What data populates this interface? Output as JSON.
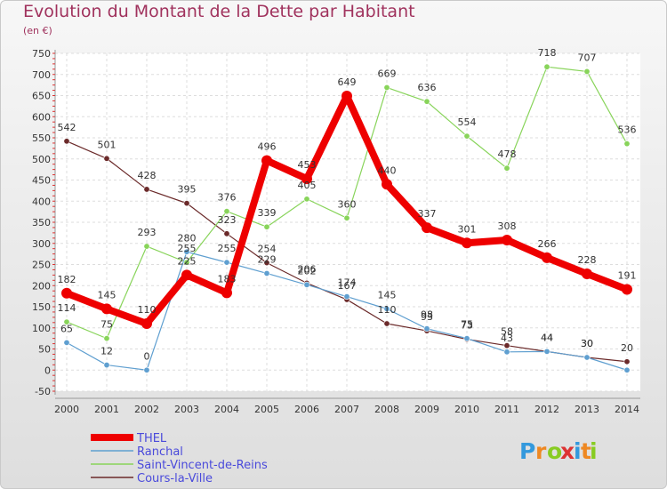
{
  "chart_data": {
    "type": "line",
    "title": "Evolution du Montant de la Dette par Habitant",
    "subtitle": "(en €)",
    "x": [
      "2000",
      "2001",
      "2002",
      "2003",
      "2004",
      "2005",
      "2006",
      "2007",
      "2008",
      "2009",
      "2010",
      "2011",
      "2012",
      "2013",
      "2014"
    ],
    "yticks": [
      -50,
      0,
      50,
      100,
      150,
      200,
      250,
      300,
      350,
      400,
      450,
      500,
      550,
      600,
      650,
      700,
      750
    ],
    "ylim": [
      -50,
      750
    ],
    "grid": true,
    "legend_position": "bottom-left",
    "series": [
      {
        "name": "THEL",
        "color": "#ee0000",
        "width": 8,
        "values": [
          182,
          145,
          110,
          225,
          183,
          496,
          453,
          649,
          440,
          337,
          301,
          308,
          266,
          228,
          191
        ],
        "labels": [
          "182",
          "145",
          "110",
          "225",
          "183",
          "496",
          "453",
          "649",
          "440",
          "337",
          "301",
          "308",
          "266",
          "228",
          "191"
        ]
      },
      {
        "name": "Ranchal",
        "color": "#5f9fd0",
        "width": 1.2,
        "values": [
          65,
          12,
          0,
          280,
          255,
          229,
          202,
          174,
          145,
          98,
          75,
          43,
          44,
          30,
          0
        ],
        "labels": [
          "65",
          "12",
          "0",
          "280",
          "255",
          "229",
          "202",
          "174",
          "145",
          "98",
          "75",
          "43",
          "44",
          "30",
          ""
        ]
      },
      {
        "name": "Saint-Vincent-de-Reins",
        "color": "#88d45a",
        "width": 1.2,
        "values": [
          114,
          75,
          293,
          255,
          376,
          339,
          405,
          360,
          669,
          636,
          554,
          478,
          718,
          707,
          536
        ],
        "labels": [
          "114",
          "75",
          "293",
          "255",
          "376",
          "339",
          "405",
          "360",
          "669",
          "636",
          "554",
          "478",
          "718",
          "707",
          "536"
        ]
      },
      {
        "name": "Cours-la-Ville",
        "color": "#6b2a2a",
        "width": 1.2,
        "values": [
          542,
          501,
          428,
          395,
          323,
          254,
          206,
          167,
          110,
          93,
          73,
          58,
          44,
          30,
          20
        ],
        "labels": [
          "542",
          "501",
          "428",
          "395",
          "323",
          "254",
          "206",
          "167",
          "110",
          "93",
          "73",
          "58",
          "44",
          "30",
          "20"
        ]
      }
    ]
  },
  "logo": {
    "text": "Proxiti",
    "colors": [
      "#3399dd",
      "#ee8822",
      "#88cc22",
      "#dd3333",
      "#3399dd",
      "#ee8822",
      "#88cc22"
    ]
  }
}
